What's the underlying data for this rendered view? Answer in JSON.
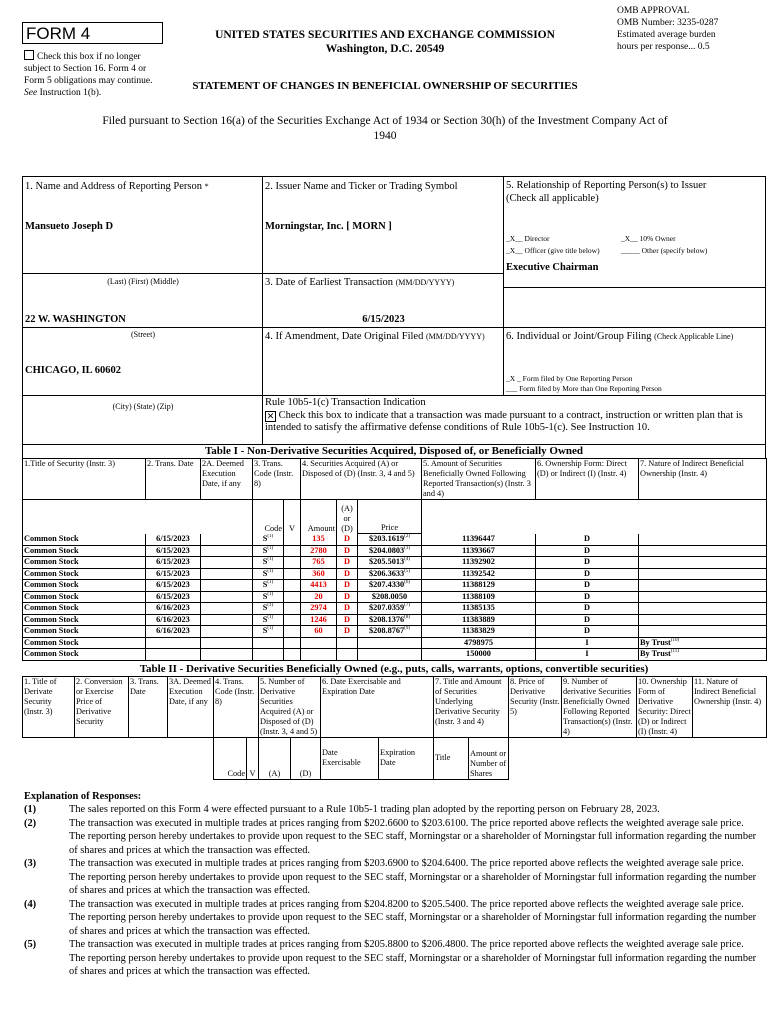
{
  "header": {
    "form_label": "FORM 4",
    "checkbox_text": "Check this box if no longer subject to Section 16. Form 4 or Form 5 obligations may continue.",
    "checkbox_see": "See",
    "checkbox_instr": "Instruction 1(b).",
    "agency": "UNITED STATES SECURITIES AND EXCHANGE COMMISSION",
    "city": "Washington, D.C. 20549",
    "omb": [
      "OMB APPROVAL",
      "OMB Number: 3235-0287",
      "Estimated average burden",
      "hours per response... 0.5"
    ],
    "statement": "STATEMENT OF CHANGES IN BENEFICIAL OWNERSHIP OF SECURITIES",
    "filed": "Filed pursuant to Section 16(a) of the Securities Exchange Act of 1934 or Section 30(h) of the Investment Company Act of 1940"
  },
  "reporting": {
    "label": "1. Name and Address of Reporting Person",
    "label_suffix": "*",
    "name": "Mansueto Joseph D",
    "name_hint": "(Last)  (First)  (Middle)",
    "street": "22 W. WASHINGTON",
    "street_hint": "(Street)",
    "city": "CHICAGO, IL 60602",
    "city_hint": "(City)  (State)  (Zip)"
  },
  "issuer": {
    "label": "2. Issuer Name and Ticker or Trading Symbol",
    "value": "Morningstar, Inc. [ MORN ]",
    "earliest_label": "3. Date of Earliest Transaction",
    "earliest_fmt": "(MM/DD/YYYY)",
    "earliest_value": "6/15/2023",
    "amend_label": "4. If Amendment, Date Original Filed",
    "amend_fmt": "(MM/DD/YYYY)",
    "rule_label": "Rule 10b5-1(c) Transaction Indication",
    "rule_text": "Check this box to indicate that a transaction was made pursuant to a contract, instruction or written plan that is intended to satisfy the affirmative defense conditions of Rule 10b5-1(c). See Instruction 10.",
    "rule_checked": true
  },
  "relationship": {
    "label": "5. Relationship of Reporting Person(s) to Issuer",
    "sub": "(Check all applicable)",
    "director": "_X__ Director",
    "owner": "_X__ 10% Owner",
    "officer": "_X__ Officer (give title below)",
    "other": "_____ Other (specify below)",
    "title": "Executive Chairman"
  },
  "filing": {
    "label": "6. Individual or Joint/Group Filing",
    "sub": "(Check Applicable Line)",
    "one": "_X _ Form filed by One Reporting Person",
    "more": "___ Form filed by More than One Reporting Person"
  },
  "table1": {
    "caption": "Table I - Non-Derivative Securities Acquired, Disposed of, or Beneficially Owned",
    "headers": [
      "1.Title of Security (Instr. 3)",
      "2. Trans. Date",
      "2A. Deemed Execution Date, if any",
      "3. Trans. Code (Instr. 8)",
      "4. Securities Acquired (A) or Disposed of (D) (Instr. 3, 4 and 5)",
      "5. Amount of Securities Beneficially Owned Following Reported Transaction(s) (Instr. 3 and 4)",
      "6. Ownership Form: Direct (D) or Indirect (I) (Instr. 4)",
      "7. Nature of Indirect Beneficial Ownership (Instr. 4)"
    ],
    "subheaders": [
      "Code",
      "V",
      "Amount",
      "(A) or (D)",
      "Price"
    ],
    "rows": [
      {
        "title": "Common Stock",
        "date": "6/15/2023",
        "code": "S",
        "code_fn": "(1)",
        "amount": "135",
        "ad": "D",
        "price": "$203.1619",
        "price_fn": "(2)",
        "owned": "11396447",
        "form": "D",
        "nature": "",
        "nature_fn": ""
      },
      {
        "title": "Common Stock",
        "date": "6/15/2023",
        "code": "S",
        "code_fn": "(1)",
        "amount": "2780",
        "ad": "D",
        "price": "$204.0803",
        "price_fn": "(3)",
        "owned": "11393667",
        "form": "D",
        "nature": "",
        "nature_fn": ""
      },
      {
        "title": "Common Stock",
        "date": "6/15/2023",
        "code": "S",
        "code_fn": "(1)",
        "amount": "765",
        "ad": "D",
        "price": "$205.5013",
        "price_fn": "(4)",
        "owned": "11392902",
        "form": "D",
        "nature": "",
        "nature_fn": ""
      },
      {
        "title": "Common Stock",
        "date": "6/15/2023",
        "code": "S",
        "code_fn": "(1)",
        "amount": "360",
        "ad": "D",
        "price": "$206.3633",
        "price_fn": "(5)",
        "owned": "11392542",
        "form": "D",
        "nature": "",
        "nature_fn": ""
      },
      {
        "title": "Common Stock",
        "date": "6/15/2023",
        "code": "S",
        "code_fn": "(1)",
        "amount": "4413",
        "ad": "D",
        "price": "$207.4330",
        "price_fn": "(6)",
        "owned": "11388129",
        "form": "D",
        "nature": "",
        "nature_fn": ""
      },
      {
        "title": "Common Stock",
        "date": "6/15/2023",
        "code": "S",
        "code_fn": "(1)",
        "amount": "20",
        "ad": "D",
        "price": "$208.0050",
        "price_fn": "",
        "owned": "11388109",
        "form": "D",
        "nature": "",
        "nature_fn": ""
      },
      {
        "title": "Common Stock",
        "date": "6/16/2023",
        "code": "S",
        "code_fn": "(1)",
        "amount": "2974",
        "ad": "D",
        "price": "$207.0359",
        "price_fn": "(7)",
        "owned": "11385135",
        "form": "D",
        "nature": "",
        "nature_fn": ""
      },
      {
        "title": "Common Stock",
        "date": "6/16/2023",
        "code": "S",
        "code_fn": "(1)",
        "amount": "1246",
        "ad": "D",
        "price": "$208.1376",
        "price_fn": "(8)",
        "owned": "11383889",
        "form": "D",
        "nature": "",
        "nature_fn": ""
      },
      {
        "title": "Common Stock",
        "date": "6/16/2023",
        "code": "S",
        "code_fn": "(1)",
        "amount": "60",
        "ad": "D",
        "price": "$208.8767",
        "price_fn": "(9)",
        "owned": "11383829",
        "form": "D",
        "nature": "",
        "nature_fn": ""
      },
      {
        "title": "Common Stock",
        "date": "",
        "code": "",
        "code_fn": "",
        "amount": "",
        "ad": "",
        "price": "",
        "price_fn": "",
        "owned": "4798975",
        "form": "I",
        "nature": "By Trust",
        "nature_fn": "(10)"
      },
      {
        "title": "Common Stock",
        "date": "",
        "code": "",
        "code_fn": "",
        "amount": "",
        "ad": "",
        "price": "",
        "price_fn": "",
        "owned": "150000",
        "form": "I",
        "nature": "By Trust",
        "nature_fn": "(11)"
      }
    ]
  },
  "table2": {
    "caption": "Table II - Derivative Securities Beneficially Owned (e.g., puts, calls, warrants, options, convertible securities)",
    "headers": [
      "1. Title of Derivate Security (Instr. 3)",
      "2. Conversion or Exercise Price of Derivative Security",
      "3. Trans. Date",
      "3A. Deemed Execution Date, if any",
      "4. Trans. Code (Instr. 8)",
      "5. Number of Derivative Securities Acquired (A) or Disposed of (D) (Instr. 3, 4 and 5)",
      "6. Date Exercisable and Expiration Date",
      "7. Title and Amount of Securities Underlying Derivative Security (Instr. 3 and 4)",
      "8. Price of Derivative Security (Instr. 5)",
      "9. Number of derivative Securities Beneficially Owned Following Reported Transaction(s) (Instr. 4)",
      "10. Ownership Form of Derivative Security: Direct (D) or Indirect (I) (Instr. 4)",
      "11. Nature of Indirect Beneficial Ownership (Instr. 4)"
    ],
    "subheaders": [
      "Code",
      "V",
      "(A)",
      "(D)",
      "Date Exercisable",
      "Expiration Date",
      "Title",
      "Amount or Number of Shares"
    ]
  },
  "explanation": {
    "title": "Explanation of Responses:",
    "footnotes": [
      {
        "n": "(1)",
        "text": "The sales reported on this Form 4 were effected pursuant to a Rule 10b5-1 trading plan adopted by the reporting person on February 28, 2023."
      },
      {
        "n": "(2)",
        "text": "The transaction was executed in multiple trades at prices ranging from $202.6600 to $203.6100. The price reported above reflects the weighted average sale price. The reporting person hereby undertakes to provide upon request to the SEC staff, Morningstar or a shareholder of Morningstar full information regarding the number of shares and prices at which the transaction was effected."
      },
      {
        "n": "(3)",
        "text": "The transaction was executed in multiple trades at prices ranging from $203.6900 to $204.6400. The price reported above reflects the weighted average sale price. The reporting person hereby undertakes to provide upon request to the SEC staff, Morningstar or a shareholder of Morningstar full information regarding the number of shares and prices at which the transaction was effected."
      },
      {
        "n": "(4)",
        "text": "The transaction was executed in multiple trades at prices ranging from $204.8200 to $205.5400. The price reported above reflects the weighted average sale price. The reporting person hereby undertakes to provide upon request to the SEC staff, Morningstar or a shareholder of Morningstar full information regarding the number of shares and prices at which the transaction was effected."
      },
      {
        "n": "(5)",
        "text": "The transaction was executed in multiple trades at prices ranging from $205.8800 to $206.4800. The price reported above reflects the weighted average sale price. The reporting person hereby undertakes to provide upon request to the SEC staff, Morningstar or a shareholder of Morningstar full information regarding the number of shares and prices at which the transaction was effected."
      }
    ]
  },
  "colors": {
    "sale_highlight": "#e00000"
  }
}
